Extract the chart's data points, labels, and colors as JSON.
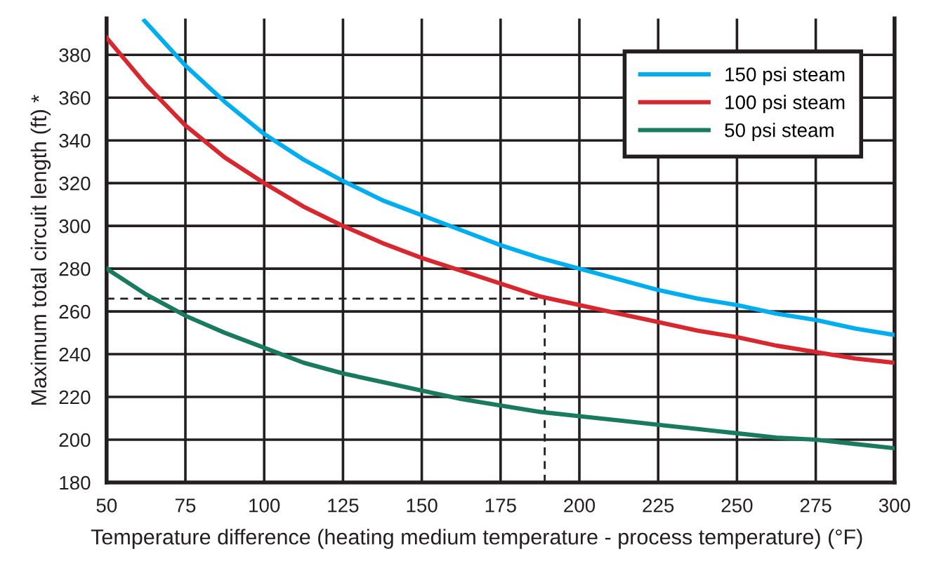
{
  "chart_data": {
    "type": "line",
    "xlabel": "Temperature difference (heating medium temperature - process temperature) (°F)",
    "ylabel": "Maximum total circuit length (ft) *",
    "xlim": [
      50,
      300
    ],
    "ylim": [
      180,
      397
    ],
    "xticks": [
      50,
      75,
      100,
      125,
      150,
      175,
      200,
      225,
      250,
      275,
      300
    ],
    "yticks": [
      180,
      200,
      220,
      240,
      260,
      280,
      300,
      320,
      340,
      360,
      380
    ],
    "grid": true,
    "legend": "top right",
    "line_style": "solid",
    "series": [
      {
        "name": "150 psi steam",
        "color": "#00aeef",
        "x": [
          62,
          75,
          87.5,
          100,
          112.5,
          125,
          137.5,
          150,
          162.5,
          175,
          187.5,
          200,
          212.5,
          225,
          237.5,
          250,
          262.5,
          275,
          287.5,
          300
        ],
        "values": [
          396,
          375,
          358,
          343,
          331,
          321,
          312,
          305,
          298,
          291,
          285,
          280,
          275,
          270,
          266,
          263,
          259,
          256,
          252,
          249
        ]
      },
      {
        "name": "100 psi steam",
        "color": "#d7282f",
        "x": [
          50,
          62.5,
          75,
          87.5,
          100,
          112.5,
          125,
          137.5,
          150,
          162.5,
          175,
          187.5,
          200,
          212.5,
          225,
          237.5,
          250,
          262.5,
          275,
          287.5,
          300
        ],
        "values": [
          388,
          366,
          347,
          332,
          320,
          309,
          300,
          292,
          285,
          279,
          273,
          267,
          263,
          259,
          255,
          251,
          248,
          244,
          241,
          238,
          236
        ]
      },
      {
        "name": "50 psi steam",
        "color": "#1a7a5e",
        "x": [
          50,
          62.5,
          75,
          87.5,
          100,
          112.5,
          125,
          137.5,
          150,
          162.5,
          175,
          187.5,
          200,
          212.5,
          225,
          237.5,
          250,
          262.5,
          275,
          287.5,
          300
        ],
        "values": [
          280,
          268,
          258,
          250,
          243,
          236,
          231,
          227,
          223,
          219,
          216,
          213,
          211,
          209,
          207,
          205,
          203,
          201,
          200,
          198,
          196
        ]
      },
      {
        "color": "#231f20",
        "line_style": "dashed",
        "x": [
          50,
          189,
          189
        ],
        "values": [
          266,
          266,
          180
        ]
      }
    ]
  }
}
